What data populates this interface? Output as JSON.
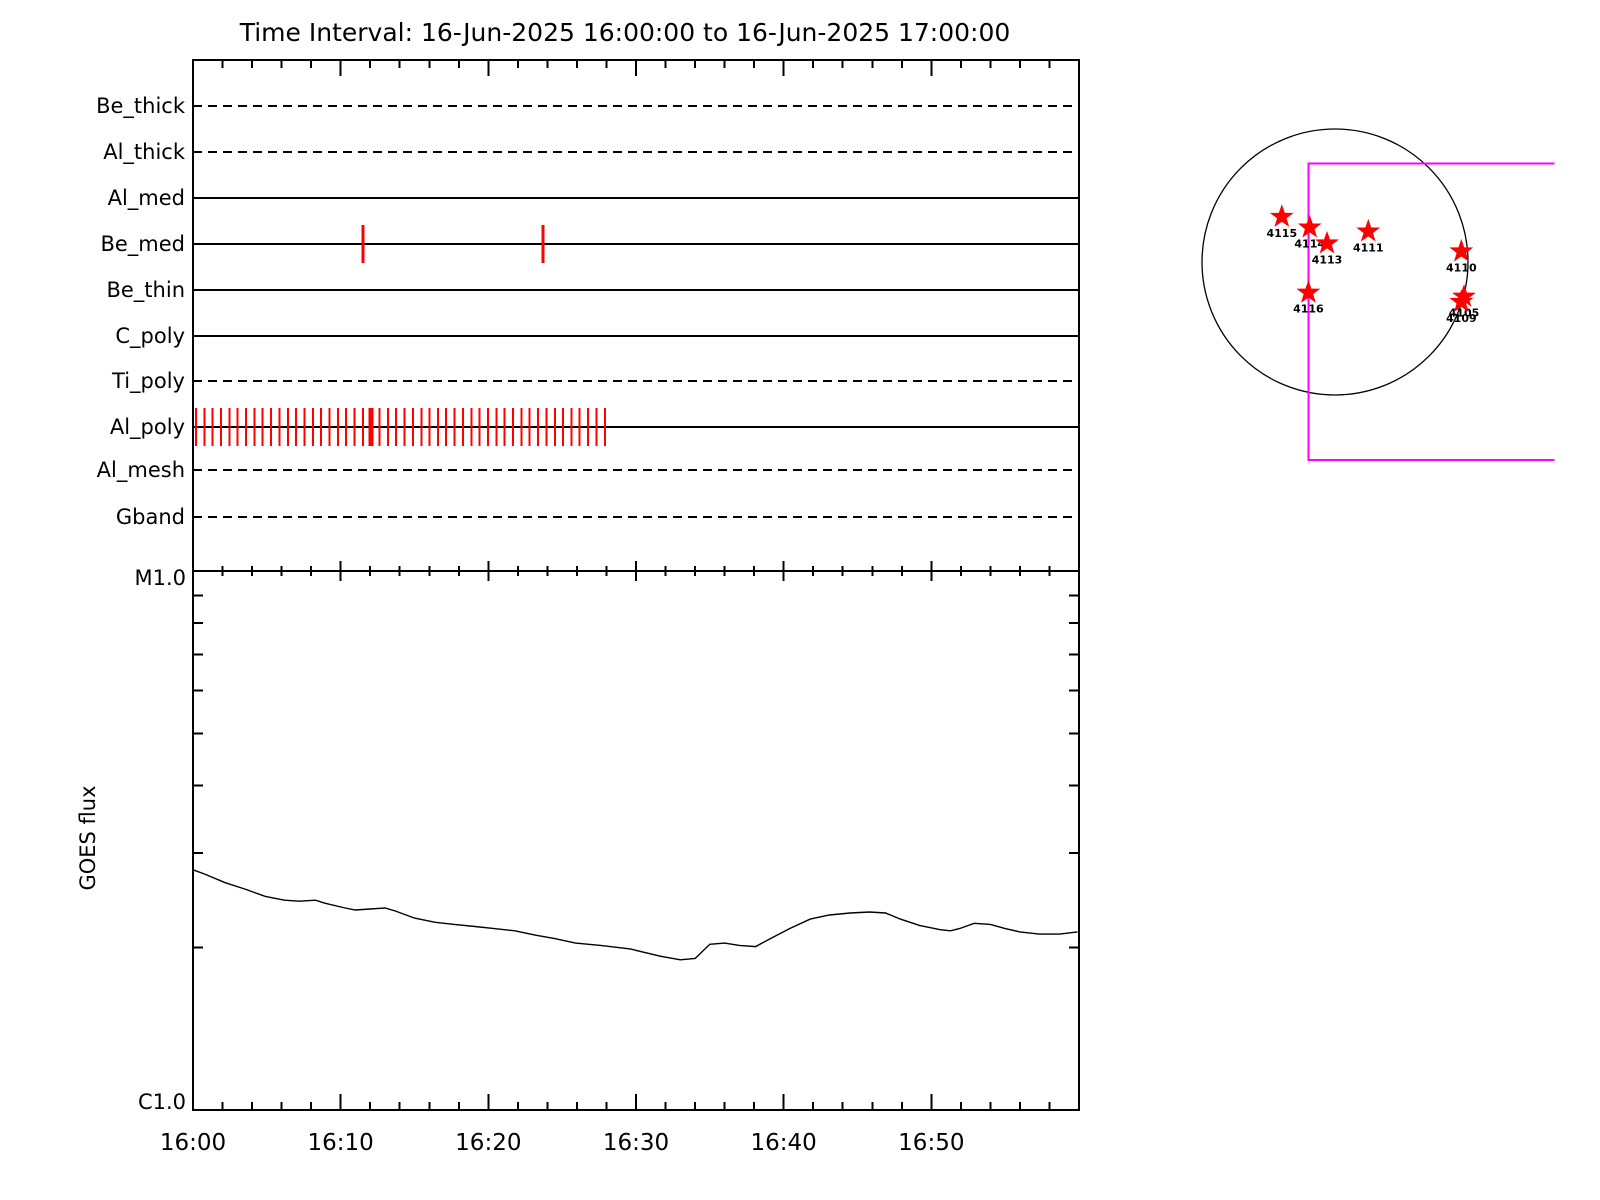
{
  "title": "Time Interval: 16-Jun-2025 16:00:00 to 16-Jun-2025 17:00:00",
  "colors": {
    "exposure_red": "#ff0000",
    "fov_magenta": "#ff00ff",
    "plot_black": "#000000",
    "background": "#ffffff"
  },
  "chart_data": [
    {
      "type": "scatter",
      "name": "xrt-filter-exposure-timeline",
      "title": "",
      "x_axis": {
        "range_minutes": [
          0,
          60
        ],
        "start_time": "16:00",
        "end_time": "17:00",
        "major_tick_labels": [
          "16:00",
          "16:10",
          "16:20",
          "16:30",
          "16:40",
          "16:50"
        ],
        "major_step_min": 10,
        "minor_step_min": 2
      },
      "rows": [
        {
          "label": "Be_thick",
          "line_style": "dashed",
          "exposures_min": []
        },
        {
          "label": "Al_thick",
          "line_style": "dashed",
          "exposures_min": []
        },
        {
          "label": "Al_med",
          "line_style": "solid",
          "exposures_min": []
        },
        {
          "label": "Be_med",
          "line_style": "solid",
          "exposures_min": [
            11.5,
            23.7
          ]
        },
        {
          "label": "Be_thin",
          "line_style": "solid",
          "exposures_min": []
        },
        {
          "label": "C_poly",
          "line_style": "solid",
          "exposures_min": []
        },
        {
          "label": "Ti_poly",
          "line_style": "dashed",
          "exposures_min": []
        },
        {
          "label": "Al_poly",
          "line_style": "solid",
          "exposures_min": [
            0.2,
            0.77,
            1.33,
            1.9,
            2.46,
            3.03,
            3.59,
            4.16,
            4.72,
            5.29,
            5.85,
            6.42,
            6.98,
            7.55,
            8.11,
            8.68,
            9.24,
            9.81,
            10.37,
            10.94,
            11.5,
            12.07,
            12.63,
            13.2,
            13.76,
            14.33,
            14.89,
            15.46,
            16.02,
            16.59,
            17.15,
            17.72,
            18.28,
            18.85,
            19.41,
            19.98,
            20.54,
            21.11,
            21.67,
            22.24,
            22.8,
            23.37,
            23.93,
            24.5,
            25.06,
            25.63,
            26.19,
            26.76,
            27.32,
            27.89
          ],
          "thick_exposure_index": 21
        },
        {
          "label": "Al_mesh",
          "line_style": "dashed",
          "exposures_min": []
        },
        {
          "label": "Gband",
          "line_style": "dashed",
          "exposures_min": []
        }
      ]
    },
    {
      "type": "line",
      "name": "goes-flux-plot",
      "ylabel": "GOES flux",
      "y_axis": {
        "scale": "log10",
        "top_label": "M1.0",
        "bottom_label": "C1.0",
        "top_value_wm2": 1e-05,
        "bottom_value_wm2": 1e-06,
        "minor_ticks_flux_1e6": [
          2,
          3,
          4,
          5,
          6,
          7,
          8,
          9
        ]
      },
      "x_minutes": [
        0,
        0.8,
        2.2,
        3.5,
        4.9,
        6.2,
        7.2,
        8.3,
        8.9,
        10.3,
        11.0,
        12.0,
        13.0,
        13.7,
        15.0,
        16.4,
        17.7,
        19.1,
        20.4,
        21.8,
        23.2,
        24.5,
        25.9,
        27.6,
        29.6,
        31.6,
        33.0,
        34.0,
        35.0,
        36.0,
        37.0,
        38.1,
        39.1,
        40.4,
        41.8,
        43.1,
        44.5,
        45.8,
        46.9,
        47.9,
        49.2,
        50.6,
        51.3,
        51.9,
        52.9,
        54.0,
        55.0,
        56.0,
        57.3,
        58.7,
        59.9
      ],
      "flux_1e6_wm2": [
        2.79,
        2.74,
        2.64,
        2.57,
        2.49,
        2.45,
        2.44,
        2.45,
        2.42,
        2.37,
        2.35,
        2.36,
        2.37,
        2.34,
        2.27,
        2.23,
        2.21,
        2.19,
        2.17,
        2.15,
        2.11,
        2.08,
        2.04,
        2.02,
        1.99,
        1.93,
        1.9,
        1.91,
        2.03,
        2.04,
        2.02,
        2.01,
        2.08,
        2.17,
        2.26,
        2.3,
        2.32,
        2.33,
        2.32,
        2.26,
        2.2,
        2.16,
        2.15,
        2.17,
        2.22,
        2.21,
        2.17,
        2.14,
        2.12,
        2.12,
        2.14
      ]
    },
    {
      "type": "scatter",
      "name": "solar-disk-active-regions",
      "regions": [
        {
          "noaa": "4115",
          "x_rsun": -0.4,
          "y_rsun": -0.34
        },
        {
          "noaa": "4114",
          "x_rsun": -0.19,
          "y_rsun": -0.26
        },
        {
          "noaa": "4113",
          "x_rsun": -0.06,
          "y_rsun": -0.14
        },
        {
          "noaa": "4111",
          "x_rsun": 0.25,
          "y_rsun": -0.23
        },
        {
          "noaa": "4110",
          "x_rsun": 0.95,
          "y_rsun": -0.08
        },
        {
          "noaa": "4116",
          "x_rsun": -0.2,
          "y_rsun": 0.23
        },
        {
          "noaa": "4105",
          "x_rsun": 0.97,
          "y_rsun": 0.26
        },
        {
          "noaa": "4109",
          "x_rsun": 0.95,
          "y_rsun": 0.3
        }
      ],
      "fov_box_rsun": {
        "left": -0.2,
        "top": -0.74,
        "bottom": 1.49,
        "right_extent": 1.65
      }
    }
  ]
}
